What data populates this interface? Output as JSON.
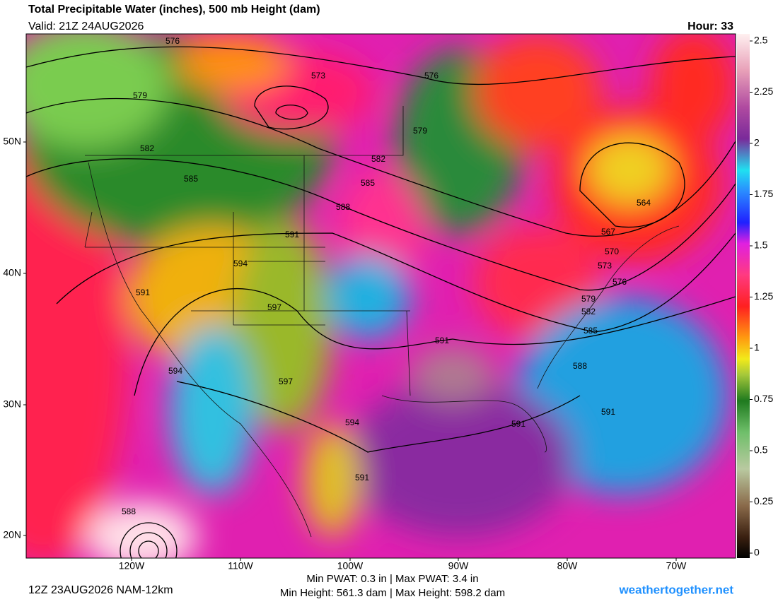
{
  "header": {
    "title": "Total Precipitable Water (inches), 500 mb Height (dam)",
    "valid": "Valid: 21Z 24AUG2026",
    "hour": "Hour: 33"
  },
  "colorbar": {
    "range": [
      0,
      2.5
    ],
    "ticks": [
      2.5,
      2.25,
      2,
      1.75,
      1.5,
      1.25,
      1,
      0.75,
      0.5,
      0.25,
      0
    ]
  },
  "axes": {
    "lat_labels": [
      "50N",
      "40N",
      "30N",
      "20N"
    ],
    "lon_labels": [
      "120W",
      "110W",
      "100W",
      "90W",
      "80W",
      "70W"
    ]
  },
  "contour_labels": [
    576,
    573,
    576,
    579,
    579,
    582,
    582,
    585,
    585,
    588,
    591,
    564,
    567,
    570,
    573,
    576,
    579,
    582,
    585,
    594,
    591,
    597,
    591,
    588,
    594,
    597,
    594,
    591,
    591,
    591,
    588
  ],
  "footer": {
    "run": "12Z 23AUG2026 NAM-12km",
    "pwat": "Min PWAT:   0.3 in | Max PWAT:   3.4 in",
    "height": "Min Height: 561.3 dam | Max Height: 598.2 dam",
    "site": "weathertogether.net"
  }
}
